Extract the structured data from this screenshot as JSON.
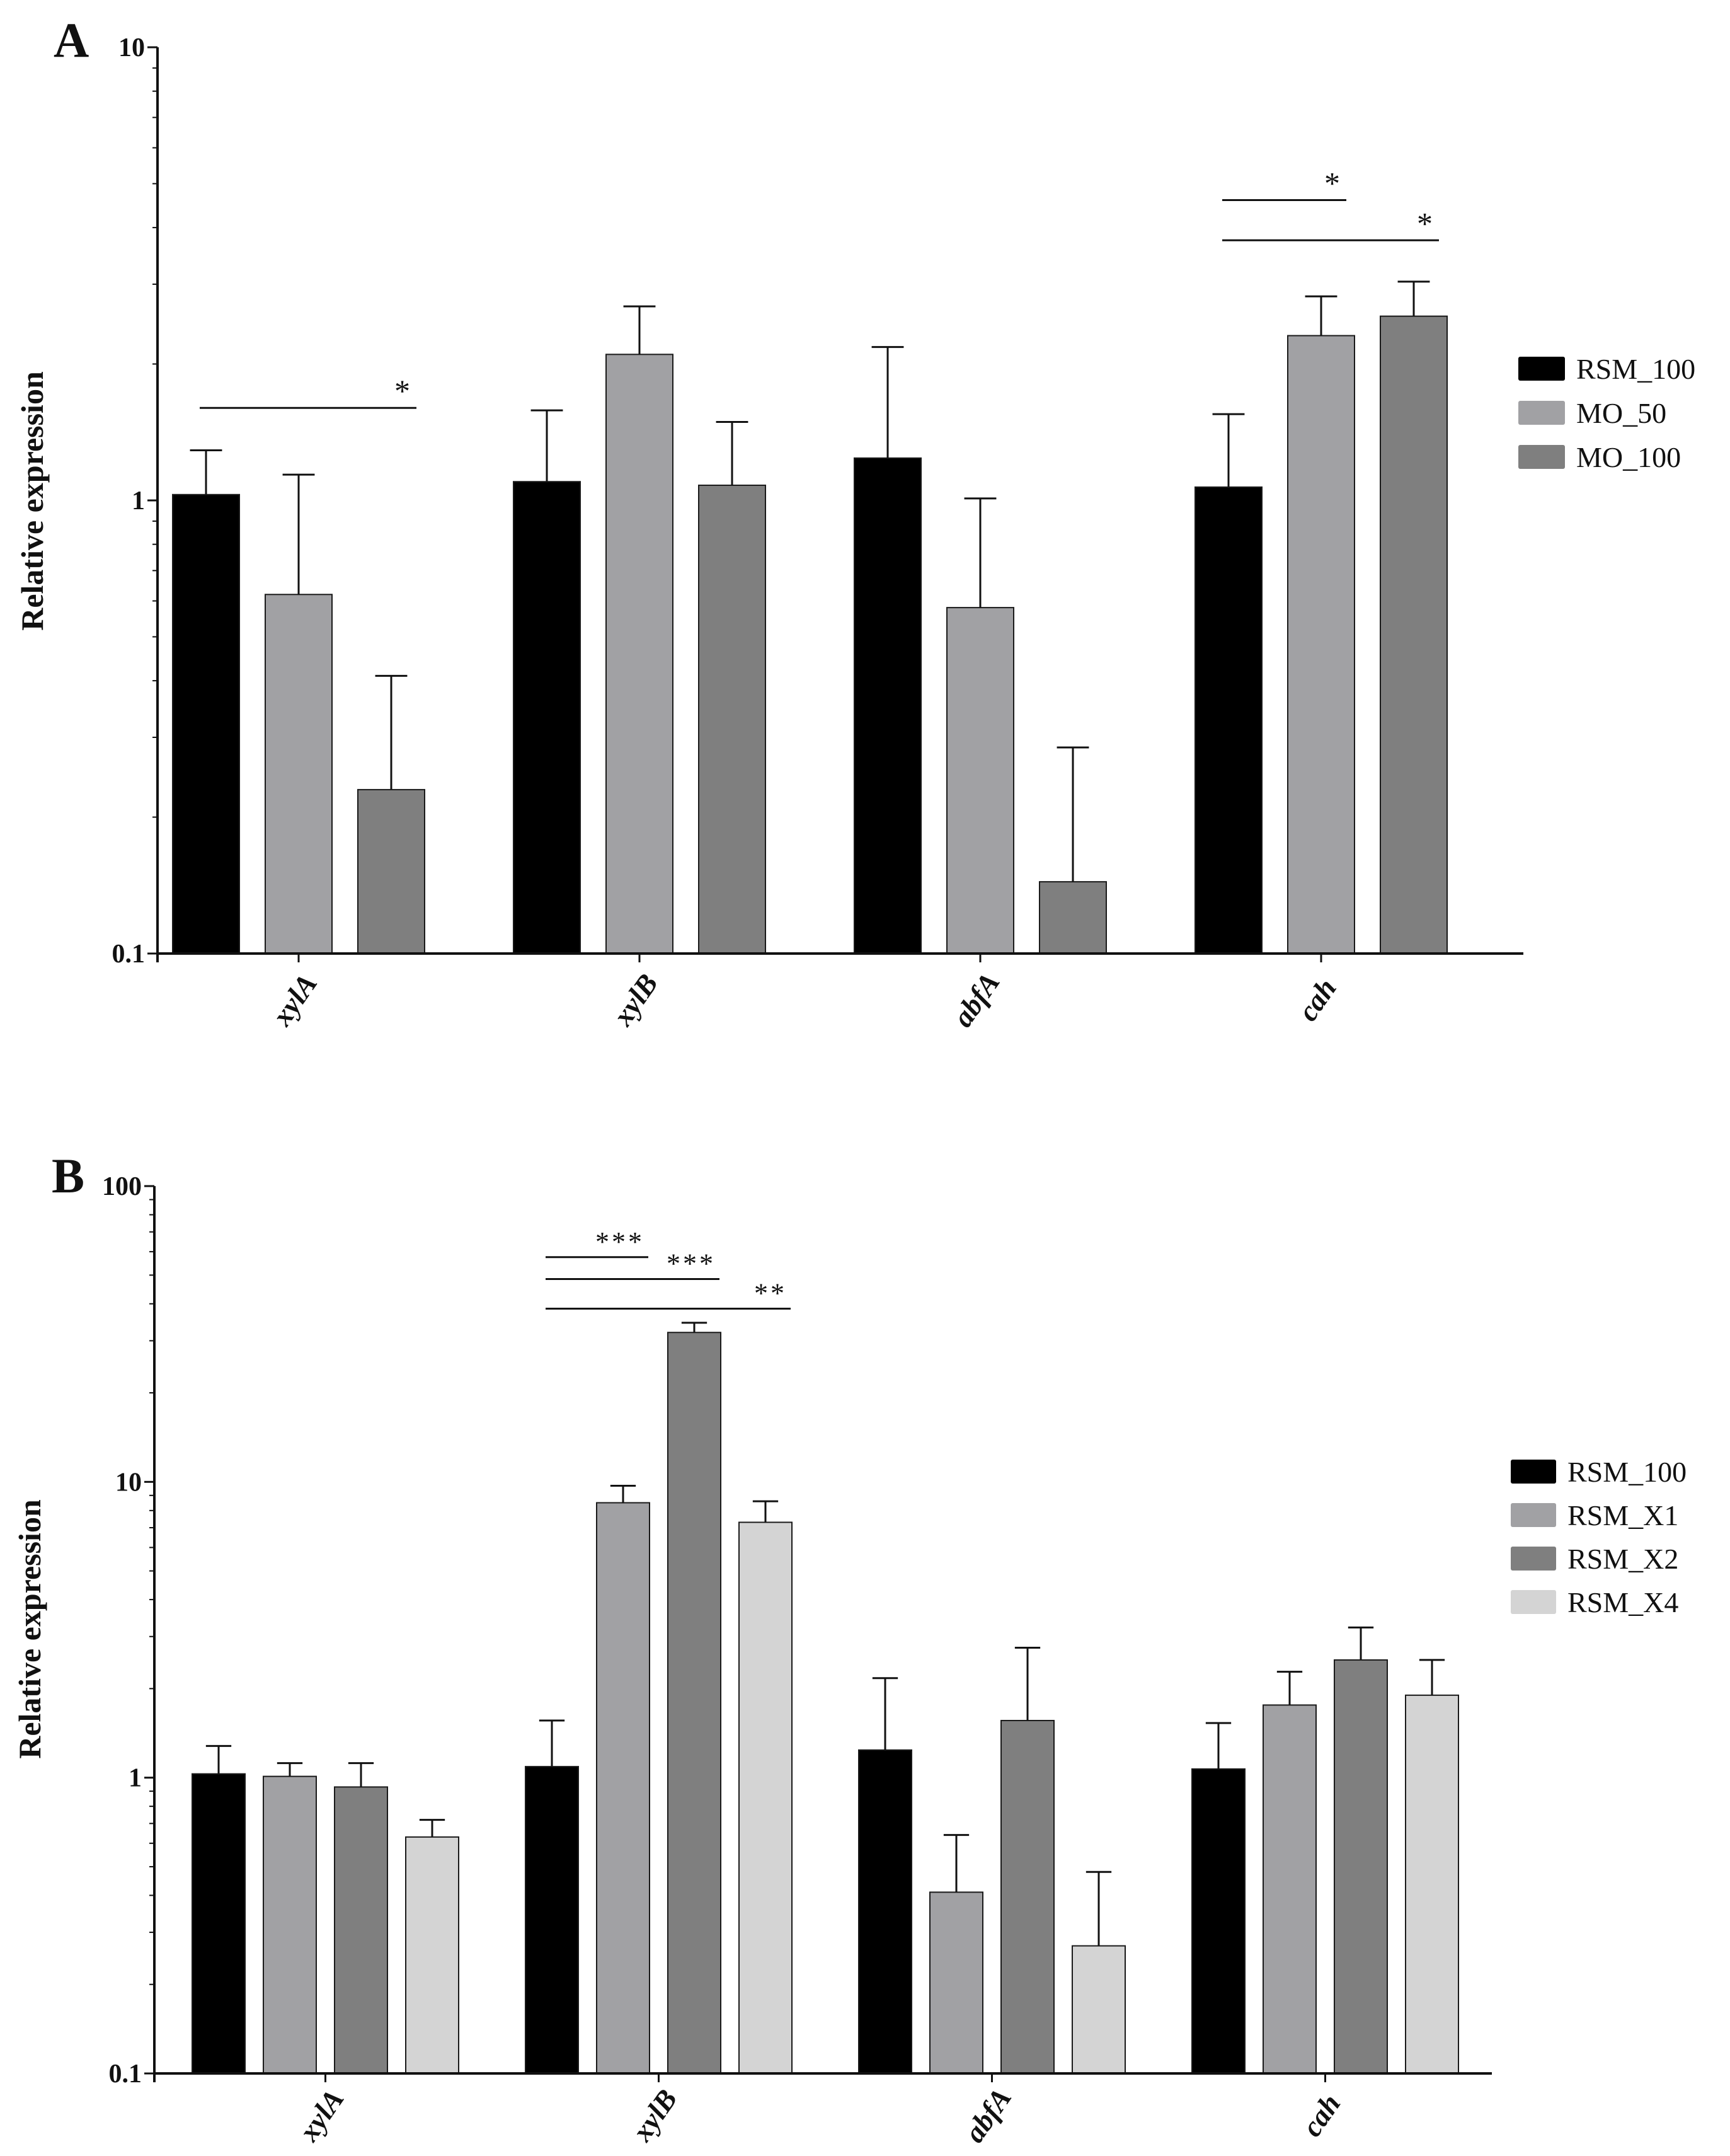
{
  "figure_type": "bar chart panels with error bars",
  "colors": {
    "axis": "#111111",
    "RSM_100": "#000000",
    "MO_50": "#a1a1a4",
    "MO_100": "#7f7f7f",
    "RSM_X1": "#a1a1a4",
    "RSM_X2": "#7f7f7f",
    "RSM_X4": "#d4d4d4"
  },
  "chart_data": [
    {
      "panel_label": "A",
      "type": "bar",
      "yscale": "log",
      "ylim": [
        0.1,
        10
      ],
      "yticks": [
        0.1,
        1,
        10
      ],
      "ytick_labels": [
        "0.1",
        "1",
        "10"
      ],
      "ylabel": "Relative expression",
      "xlabel": "",
      "categories": [
        "xylA",
        "xylB",
        "abfA",
        "cah"
      ],
      "series": [
        {
          "name": "RSM_100",
          "color": "#000000",
          "values": [
            1.03,
            1.1,
            1.24,
            1.07
          ],
          "errors": [
            1.29,
            1.58,
            2.18,
            1.55
          ]
        },
        {
          "name": "MO_50",
          "color": "#a1a1a4",
          "values": [
            0.62,
            2.1,
            0.58,
            2.31
          ],
          "errors": [
            1.14,
            2.68,
            1.01,
            2.82
          ]
        },
        {
          "name": "MO_100",
          "color": "#7f7f7f",
          "values": [
            0.23,
            1.08,
            0.144,
            2.55
          ],
          "errors": [
            0.41,
            1.49,
            0.285,
            3.04
          ]
        }
      ],
      "significance": [
        {
          "category": 0,
          "from": 0,
          "to": 2,
          "label": "*",
          "level": 1.6
        },
        {
          "category": 3,
          "from": 0,
          "to": 1,
          "label": "*",
          "level": 4.6
        },
        {
          "category": 3,
          "from": 0,
          "to": 2,
          "label": "*",
          "level": 3.75
        }
      ],
      "legend": {
        "position": "right",
        "entries": [
          "RSM_100",
          "MO_50",
          "MO_100"
        ]
      }
    },
    {
      "panel_label": "B",
      "type": "bar",
      "yscale": "log",
      "ylim": [
        0.1,
        100
      ],
      "yticks": [
        0.1,
        1,
        10,
        100
      ],
      "ytick_labels": [
        "0.1",
        "1",
        "10",
        "100"
      ],
      "ylabel": "Relative expression",
      "xlabel": "",
      "categories": [
        "xylA",
        "xylB",
        "abfA",
        "cah"
      ],
      "series": [
        {
          "name": "RSM_100",
          "color": "#000000",
          "values": [
            1.03,
            1.09,
            1.24,
            1.07
          ],
          "errors": [
            1.28,
            1.56,
            2.17,
            1.53
          ]
        },
        {
          "name": "RSM_X1",
          "color": "#a1a1a4",
          "values": [
            1.01,
            8.5,
            0.41,
            1.76
          ],
          "errors": [
            1.12,
            9.7,
            0.64,
            2.28
          ]
        },
        {
          "name": "RSM_X2",
          "color": "#7f7f7f",
          "values": [
            0.93,
            32,
            1.56,
            2.5
          ],
          "errors": [
            1.12,
            34.5,
            2.75,
            3.22
          ]
        },
        {
          "name": "RSM_X4",
          "color": "#d4d4d4",
          "values": [
            0.63,
            7.3,
            0.27,
            1.9
          ],
          "errors": [
            0.72,
            8.6,
            0.48,
            2.5
          ]
        }
      ],
      "significance": [
        {
          "category": 1,
          "from": 0,
          "to": 1,
          "label": "***",
          "level": 57.5
        },
        {
          "category": 1,
          "from": 0,
          "to": 2,
          "label": "***",
          "level": 48.5
        },
        {
          "category": 1,
          "from": 0,
          "to": 3,
          "label": "**",
          "level": 38.5
        }
      ],
      "legend": {
        "position": "right",
        "entries": [
          "RSM_100",
          "RSM_X1",
          "RSM_X2",
          "RSM_X4"
        ]
      }
    }
  ]
}
